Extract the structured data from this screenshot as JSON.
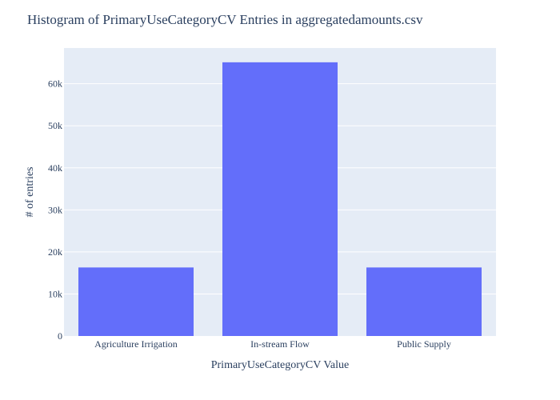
{
  "chart_data": {
    "type": "bar",
    "title": "Histogram of PrimaryUseCategoryCV Entries in aggregatedamounts.csv",
    "xlabel": "PrimaryUseCategoryCV Value",
    "ylabel": "# of entries",
    "categories": [
      "Agriculture Irrigation",
      "In-stream Flow",
      "Public Supply"
    ],
    "values": [
      16300,
      65100,
      16300
    ],
    "ylim": [
      0,
      68500
    ],
    "yticks": [
      0,
      10000,
      20000,
      30000,
      40000,
      50000,
      60000
    ],
    "ytick_labels": [
      "0",
      "10k",
      "20k",
      "30k",
      "40k",
      "50k",
      "60k"
    ],
    "grid": true,
    "colors": {
      "bar": "#636efa",
      "plot_bg": "#e5ecf6",
      "grid": "#ffffff",
      "text": "#2a3f5f"
    }
  }
}
